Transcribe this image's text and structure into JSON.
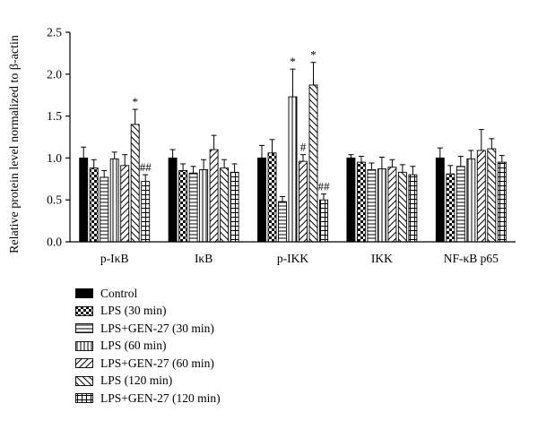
{
  "chart_data": {
    "type": "bar",
    "ylabel": "Relative protein level normalized to β-actin",
    "ylim": [
      0,
      2.5
    ],
    "yticks": [
      "0.0",
      "0.5",
      "1.0",
      "1.5",
      "2.0",
      "2.5"
    ],
    "categories": [
      "p-IκB",
      "IκB",
      "p-IKK",
      "IKK",
      "NF-κB p65"
    ],
    "grid": false,
    "legend_position": "bottom-left",
    "series": [
      {
        "name": "Control",
        "pattern": "solid",
        "values": [
          1.0,
          1.0,
          1.0,
          1.0,
          1.0
        ],
        "errors": [
          0.13,
          0.1,
          0.15,
          0.04,
          0.12
        ]
      },
      {
        "name": "LPS (30 min)",
        "pattern": "checker",
        "values": [
          0.88,
          0.85,
          1.06,
          0.95,
          0.81
        ],
        "errors": [
          0.1,
          0.08,
          0.16,
          0.07,
          0.1
        ]
      },
      {
        "name": "LPS+GEN-27 (30 min)",
        "pattern": "hlines",
        "values": [
          0.77,
          0.82,
          0.48,
          0.86,
          0.9
        ],
        "errors": [
          0.08,
          0.08,
          0.06,
          0.08,
          0.12
        ]
      },
      {
        "name": "LPS (60 min)",
        "pattern": "vlines",
        "values": [
          0.99,
          0.86,
          1.73,
          0.87,
          0.99
        ],
        "errors": [
          0.08,
          0.12,
          0.33,
          0.14,
          0.1
        ]
      },
      {
        "name": "LPS+GEN-27 (60 min)",
        "pattern": "fdiag",
        "values": [
          0.91,
          1.1,
          0.96,
          0.89,
          1.09
        ],
        "errors": [
          0.13,
          0.17,
          0.08,
          0.09,
          0.25
        ]
      },
      {
        "name": "LPS (120 min)",
        "pattern": "bdiag",
        "values": [
          1.4,
          0.88,
          1.87,
          0.83,
          1.11
        ],
        "errors": [
          0.18,
          0.1,
          0.27,
          0.09,
          0.12
        ]
      },
      {
        "name": "LPS+GEN-27 (120 min)",
        "pattern": "grid",
        "values": [
          0.72,
          0.83,
          0.5,
          0.8,
          0.95
        ],
        "errors": [
          0.08,
          0.1,
          0.07,
          0.1,
          0.08
        ]
      }
    ],
    "annotations": [
      {
        "category": 0,
        "series": 5,
        "text": "*"
      },
      {
        "category": 0,
        "series": 6,
        "text": "##"
      },
      {
        "category": 2,
        "series": 3,
        "text": "*"
      },
      {
        "category": 2,
        "series": 4,
        "text": "#"
      },
      {
        "category": 2,
        "series": 5,
        "text": "*"
      },
      {
        "category": 2,
        "series": 6,
        "text": "##"
      }
    ]
  }
}
